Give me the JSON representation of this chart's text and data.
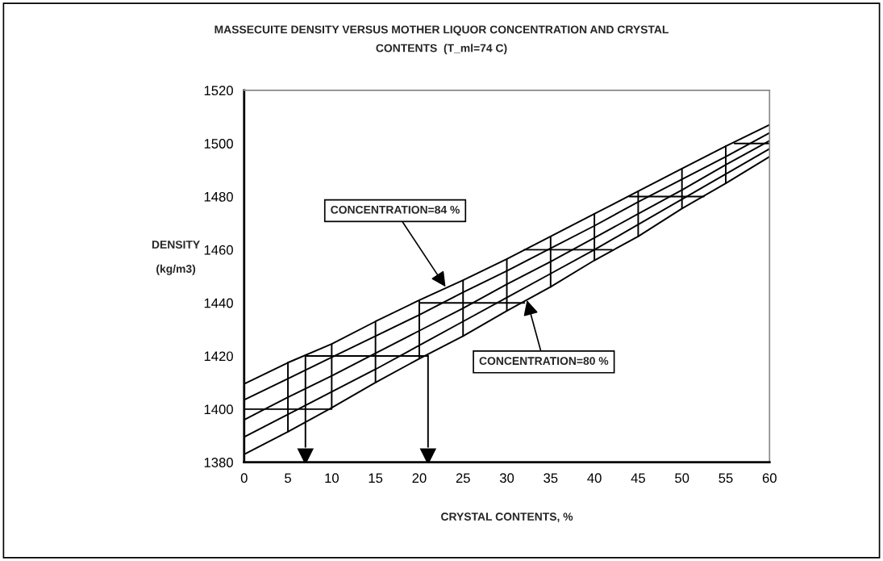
{
  "chart_data": {
    "type": "line",
    "title": "MASSECUITE DENSITY VERSUS MOTHER LIQUOR CONCENTRATION AND CRYSTAL\nCONTENTS  (T_ml=74 C)",
    "xlabel": "CRYSTAL CONTENTS, %",
    "ylabel": "DENSITY\n\n(kg/m3)",
    "x": [
      0,
      5,
      10,
      15,
      20,
      25,
      30,
      35,
      40,
      45,
      50,
      55,
      60
    ],
    "series": [
      {
        "color": "#000000",
        "values": [
          1409.5,
          1417.5,
          1424.5,
          1433,
          1441,
          1448.5,
          1456.5,
          1465,
          1473.5,
          1482,
          1490.5,
          1499,
          1507
        ]
      },
      {
        "color": "#000000",
        "values": [
          1403.5,
          1411.5,
          1419.5,
          1427.5,
          1435.5,
          1444,
          1452,
          1460.5,
          1469,
          1478,
          1486.5,
          1495,
          1504
        ]
      },
      {
        "color": "#000000",
        "values": [
          1396,
          1404.5,
          1412.5,
          1421,
          1429.5,
          1438,
          1447,
          1455.5,
          1464.5,
          1473.5,
          1482.5,
          1492,
          1501
        ]
      },
      {
        "color": "#000000",
        "values": [
          1389.5,
          1398,
          1406.5,
          1415,
          1424,
          1433,
          1442,
          1451,
          1460,
          1469.5,
          1479,
          1488.5,
          1498
        ]
      },
      {
        "color": "#000000",
        "values": [
          1383,
          1391.5,
          1400.5,
          1410,
          1419,
          1427.5,
          1437,
          1446,
          1456,
          1465,
          1475.5,
          1485,
          1495
        ]
      },
      {
        "color": "#000000",
        "x": [
          5,
          5
        ],
        "values": [
          1417.5,
          1391.5
        ]
      },
      {
        "color": "#000000",
        "x": [
          10,
          10
        ],
        "values": [
          1424.5,
          1400.5
        ]
      },
      {
        "color": "#000000",
        "x": [
          15,
          15
        ],
        "values": [
          1433,
          1410
        ]
      },
      {
        "color": "#000000",
        "x": [
          20,
          20
        ],
        "values": [
          1441,
          1419
        ]
      },
      {
        "color": "#000000",
        "x": [
          25,
          25
        ],
        "values": [
          1448.5,
          1427.5
        ]
      },
      {
        "color": "#000000",
        "x": [
          30,
          30
        ],
        "values": [
          1456.5,
          1437
        ]
      },
      {
        "color": "#000000",
        "x": [
          35,
          35
        ],
        "values": [
          1465,
          1446
        ]
      },
      {
        "color": "#000000",
        "x": [
          40,
          40
        ],
        "values": [
          1473.5,
          1456
        ]
      },
      {
        "color": "#000000",
        "x": [
          45,
          45
        ],
        "values": [
          1482,
          1465
        ]
      },
      {
        "color": "#000000",
        "x": [
          50,
          50
        ],
        "values": [
          1490.5,
          1475.5
        ]
      },
      {
        "color": "#000000",
        "x": [
          55,
          55
        ],
        "values": [
          1499,
          1485
        ]
      },
      {
        "color": "#000000",
        "x": [
          0,
          10
        ],
        "values": [
          1400,
          1400
        ]
      },
      {
        "color": "#000000",
        "x": [
          7,
          21
        ],
        "values": [
          1420,
          1420
        ]
      },
      {
        "color": "#000000",
        "x": [
          20,
          32
        ],
        "values": [
          1440,
          1440
        ]
      },
      {
        "color": "#000000",
        "x": [
          32,
          42
        ],
        "values": [
          1460,
          1460
        ]
      },
      {
        "color": "#000000",
        "x": [
          44,
          52.5
        ],
        "values": [
          1480,
          1480
        ]
      },
      {
        "color": "#000000",
        "x": [
          56,
          60
        ],
        "values": [
          1500,
          1500
        ]
      },
      {
        "color": "#000000",
        "x": [
          7,
          7
        ],
        "values": [
          1420,
          1382
        ],
        "marker": "triangle"
      },
      {
        "color": "#000000",
        "x": [
          21,
          21
        ],
        "values": [
          1420,
          1382
        ],
        "marker": "triangle"
      }
    ],
    "annotations": [
      {
        "text": "CONCENTRATION=84 %",
        "x": 23,
        "y": 1446
      },
      {
        "text": "CONCENTRATION=80 %",
        "x": 32.3,
        "y": 1441
      }
    ],
    "xlim": [
      0,
      60
    ],
    "ylim": [
      1380,
      1520
    ],
    "xticks": [
      0,
      5,
      10,
      15,
      20,
      25,
      30,
      35,
      40,
      45,
      50,
      55,
      60
    ],
    "yticks": [
      1380,
      1400,
      1420,
      1440,
      1460,
      1480,
      1500,
      1520
    ],
    "grid": false,
    "legend": false
  }
}
